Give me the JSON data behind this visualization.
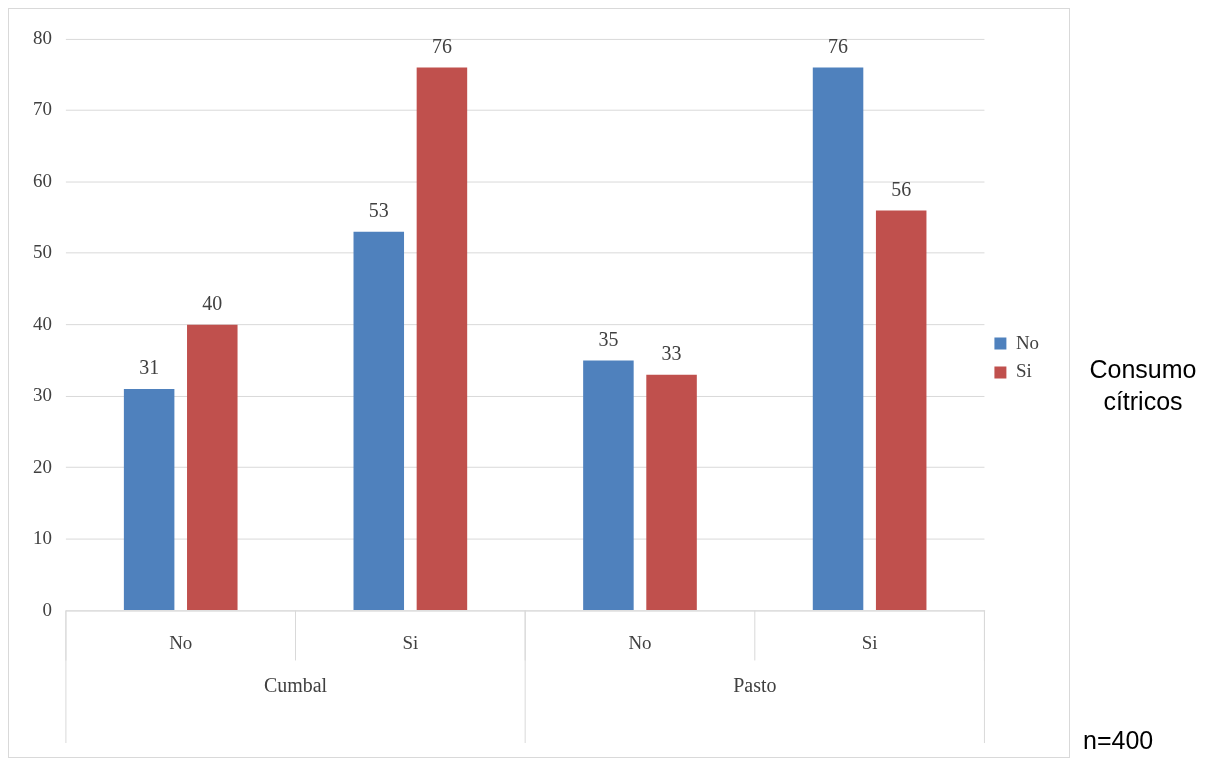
{
  "chart_data": {
    "type": "bar",
    "categories": [
      "No",
      "Si",
      "No",
      "Si"
    ],
    "series": [
      {
        "name": "No",
        "color": "#4f81bd",
        "values": [
          31,
          53,
          35,
          76
        ]
      },
      {
        "name": "Si",
        "color": "#c0504d",
        "values": [
          40,
          76,
          33,
          56
        ]
      }
    ],
    "ylim": [
      0,
      80
    ],
    "yticks": [
      0,
      10,
      20,
      30,
      40,
      50,
      60,
      70,
      80
    ],
    "grid": "y",
    "legend": "right",
    "legend_title": "Consumo cítricos",
    "data_labels": true,
    "annotations": [
      "Cumbal",
      "Pasto",
      "n=400"
    ]
  }
}
